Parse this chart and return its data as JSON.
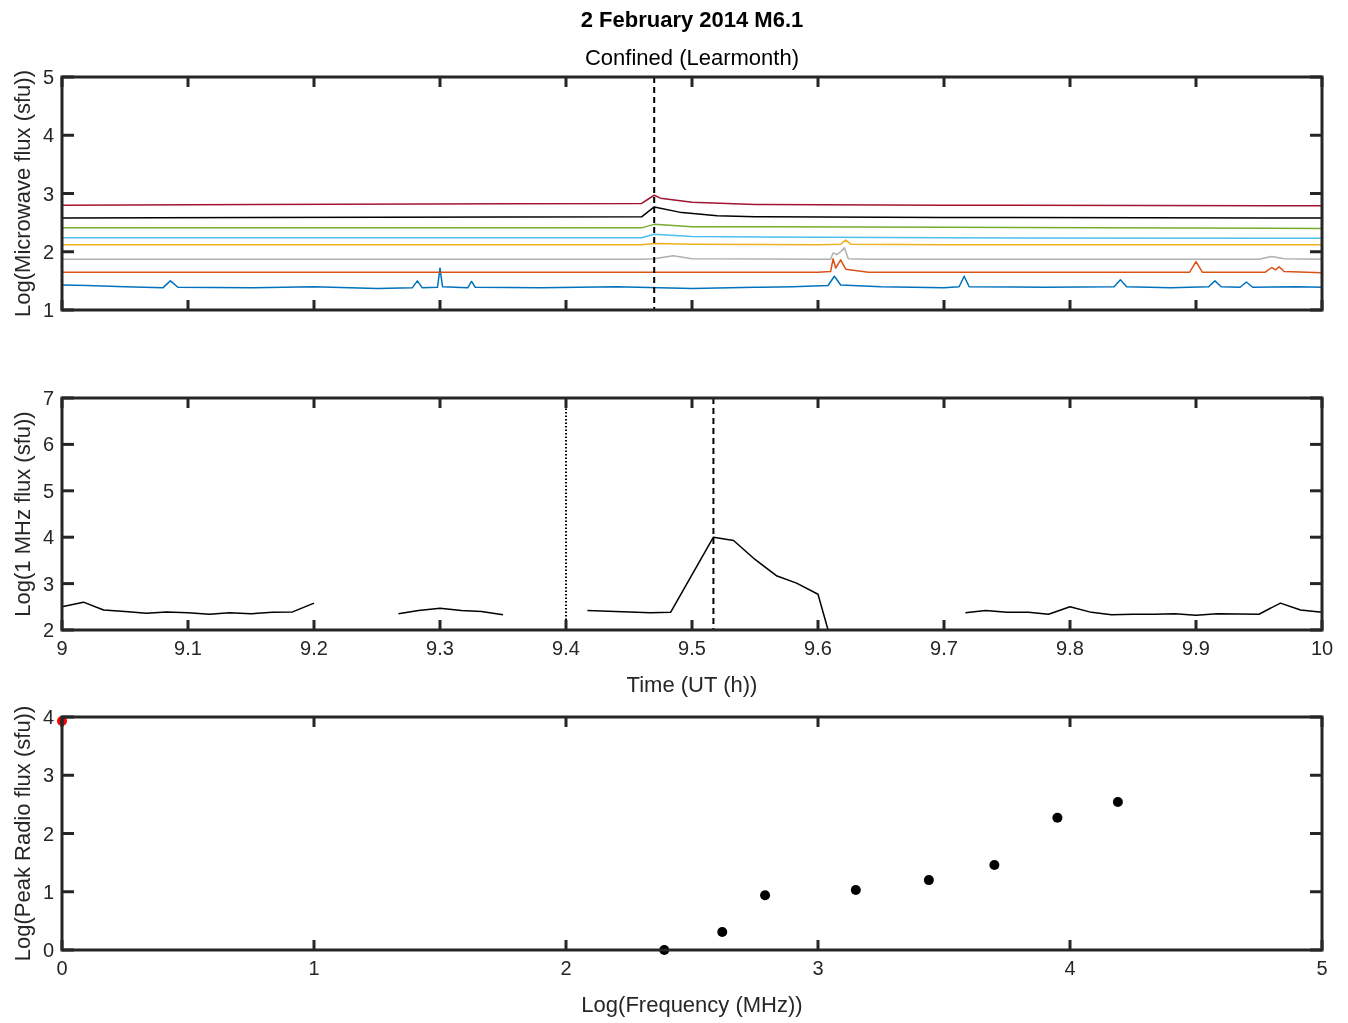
{
  "chart_data": [
    {
      "type": "line",
      "title": "2 February 2014 M6.1",
      "subtitle": "Confined (Learmonth)",
      "ylabel": "Log(Microwave flux (sfu))",
      "xlim": [
        9,
        10
      ],
      "xticks": [
        9,
        9.1,
        9.2,
        9.3,
        9.4,
        9.5,
        9.6,
        9.7,
        9.8,
        9.9,
        10
      ],
      "ylim": [
        1,
        5
      ],
      "yticks": [
        1,
        2,
        3,
        4,
        5
      ],
      "tick_labels": "y",
      "grid": false,
      "marker": "none",
      "line_style": "solid",
      "ref_lines": [
        {
          "axis": "x",
          "value": 9.47,
          "line_style": "dashed",
          "color": "#000000"
        }
      ],
      "series": [
        {
          "color": "#0072bd",
          "x": [
            9,
            9.02,
            9.05,
            9.08,
            9.086,
            9.092,
            9.15,
            9.2,
            9.25,
            9.278,
            9.282,
            9.286,
            9.298,
            9.3,
            9.302,
            9.322,
            9.325,
            9.328,
            9.38,
            9.44,
            9.5,
            9.55,
            9.58,
            9.608,
            9.613,
            9.618,
            9.65,
            9.7,
            9.712,
            9.716,
            9.72,
            9.78,
            9.835,
            9.84,
            9.845,
            9.88,
            9.91,
            9.915,
            9.92,
            9.935,
            9.94,
            9.945,
            9.98,
            10
          ],
          "values": [
            1.43,
            1.42,
            1.4,
            1.38,
            1.5,
            1.39,
            1.38,
            1.4,
            1.37,
            1.38,
            1.5,
            1.38,
            1.39,
            1.72,
            1.4,
            1.38,
            1.49,
            1.39,
            1.38,
            1.4,
            1.37,
            1.39,
            1.4,
            1.42,
            1.58,
            1.43,
            1.4,
            1.38,
            1.4,
            1.58,
            1.4,
            1.39,
            1.4,
            1.52,
            1.4,
            1.38,
            1.4,
            1.5,
            1.4,
            1.39,
            1.48,
            1.39,
            1.4,
            1.39
          ]
        },
        {
          "color": "#d95319",
          "x": [
            9,
            9.2,
            9.4,
            9.6,
            9.61,
            9.612,
            9.614,
            9.618,
            9.622,
            9.64,
            9.8,
            9.895,
            9.9,
            9.905,
            9.955,
            9.96,
            9.963,
            9.966,
            9.97,
            10
          ],
          "values": [
            1.65,
            1.65,
            1.65,
            1.65,
            1.66,
            1.88,
            1.72,
            1.86,
            1.7,
            1.65,
            1.65,
            1.65,
            1.83,
            1.65,
            1.65,
            1.73,
            1.69,
            1.74,
            1.66,
            1.64
          ]
        },
        {
          "color": "#b0b0b0",
          "x": [
            9,
            9.2,
            9.46,
            9.47,
            9.485,
            9.5,
            9.6,
            9.61,
            9.612,
            9.615,
            9.618,
            9.621,
            9.624,
            9.64,
            9.8,
            9.95,
            9.96,
            9.97,
            10
          ],
          "values": [
            1.87,
            1.87,
            1.87,
            1.88,
            1.93,
            1.88,
            1.87,
            1.87,
            1.98,
            1.95,
            2.0,
            2.07,
            1.88,
            1.87,
            1.87,
            1.87,
            1.92,
            1.88,
            1.87
          ]
        },
        {
          "color": "#edb120",
          "x": [
            9,
            9.2,
            9.46,
            9.47,
            9.5,
            9.6,
            9.618,
            9.622,
            9.626,
            9.7,
            10
          ],
          "values": [
            2.12,
            2.12,
            2.12,
            2.14,
            2.13,
            2.12,
            2.13,
            2.2,
            2.13,
            2.12,
            2.12
          ]
        },
        {
          "color": "#4dbeee",
          "x": [
            9,
            9.46,
            9.47,
            9.5,
            9.7,
            10
          ],
          "values": [
            2.24,
            2.24,
            2.3,
            2.26,
            2.24,
            2.23
          ]
        },
        {
          "color": "#77ac30",
          "x": [
            9,
            9.46,
            9.47,
            9.5,
            9.7,
            10
          ],
          "values": [
            2.41,
            2.41,
            2.47,
            2.43,
            2.42,
            2.4
          ]
        },
        {
          "color": "#000000",
          "x": [
            9,
            9.46,
            9.47,
            9.49,
            9.52,
            9.55,
            9.7,
            10
          ],
          "values": [
            2.58,
            2.6,
            2.77,
            2.68,
            2.62,
            2.6,
            2.59,
            2.58
          ]
        },
        {
          "color": "#a2142f",
          "x": [
            9,
            9.46,
            9.47,
            9.475,
            9.5,
            9.55,
            9.7,
            10
          ],
          "values": [
            2.8,
            2.83,
            2.97,
            2.92,
            2.85,
            2.81,
            2.8,
            2.79
          ]
        }
      ]
    },
    {
      "type": "line",
      "xlabel": "Time (UT (h))",
      "ylabel": "Log(1 MHz flux (sfu))",
      "xlim": [
        9,
        10
      ],
      "xticks": [
        9,
        9.1,
        9.2,
        9.3,
        9.4,
        9.5,
        9.6,
        9.7,
        9.8,
        9.9,
        10
      ],
      "ylim": [
        2,
        7
      ],
      "yticks": [
        2,
        3,
        4,
        5,
        6,
        7
      ],
      "grid": false,
      "marker": "none",
      "line_style": "solid",
      "ref_lines": [
        {
          "axis": "x",
          "value": 9.4,
          "line_style": "dotted",
          "color": "#000000"
        },
        {
          "axis": "x",
          "value": 9.517,
          "line_style": "dashed",
          "color": "#000000"
        }
      ],
      "series": [
        {
          "color": "#000000",
          "x": [
            9,
            9.017,
            9.033,
            9.05,
            9.067,
            9.083,
            9.1,
            9.117,
            9.133,
            9.15,
            9.167,
            9.183,
            9.2,
            9.217,
            9.267,
            9.283,
            9.3,
            9.317,
            9.333,
            9.35,
            9.367,
            9.417,
            9.467,
            9.483,
            9.517,
            9.533,
            9.55,
            9.567,
            9.583,
            9.6,
            9.608,
            9.617,
            9.717,
            9.733,
            9.75,
            9.767,
            9.783,
            9.8,
            9.817,
            9.833,
            9.85,
            9.867,
            9.883,
            9.9,
            9.917,
            9.95,
            9.967,
            9.983,
            10
          ],
          "values": [
            2.5,
            2.6,
            2.43,
            2.4,
            2.36,
            2.39,
            2.37,
            2.34,
            2.37,
            2.35,
            2.38,
            2.39,
            2.58,
            null,
            2.35,
            2.42,
            2.47,
            2.42,
            2.4,
            2.33,
            null,
            2.42,
            2.37,
            2.38,
            4.0,
            3.93,
            3.52,
            3.17,
            3.01,
            2.77,
            2,
            null,
            2.37,
            2.42,
            2.38,
            2.38,
            2.34,
            2.5,
            2.38,
            2.33,
            2.34,
            2.34,
            2.35,
            2.32,
            2.35,
            2.34,
            2.58,
            2.43,
            2.38
          ]
        }
      ]
    },
    {
      "type": "scatter",
      "xlabel": "Log(Frequency (MHz))",
      "ylabel": "Log(Peak Radio flux (sfu))",
      "xlim": [
        0,
        5
      ],
      "xticks": [
        0,
        1,
        2,
        3,
        4,
        5
      ],
      "ylim": [
        0,
        4
      ],
      "yticks": [
        0,
        1,
        2,
        3,
        4
      ],
      "grid": false,
      "marker": "circle",
      "series": [
        {
          "color": "#000000",
          "x": [
            2.39,
            2.62,
            2.79,
            3.15,
            3.44,
            3.7,
            3.95,
            4.19
          ],
          "values": [
            0,
            0.31,
            0.94,
            1.03,
            1.2,
            1.46,
            2.27,
            2.54
          ]
        },
        {
          "color": "#ff0000",
          "x": [
            0
          ],
          "values": [
            3.93
          ]
        }
      ]
    }
  ]
}
